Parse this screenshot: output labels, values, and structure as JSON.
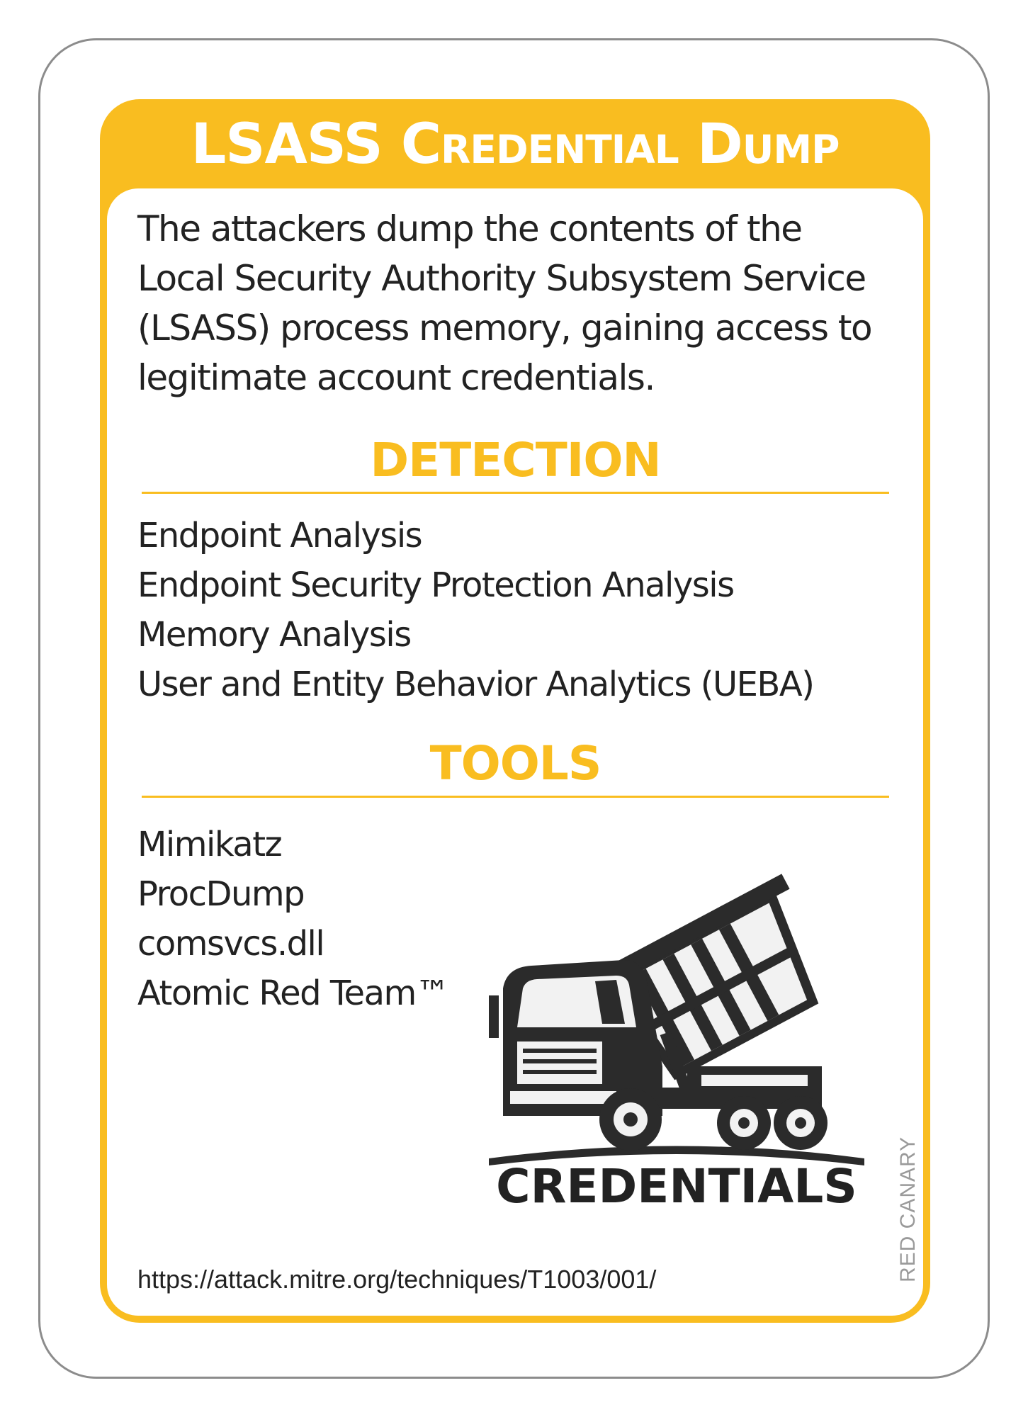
{
  "card": {
    "title": "LSASS Credential Dump",
    "description": "The attackers dump the contents of the Local Security Authority Subsystem Service (LSASS) process memory, gaining access to legitimate account credentials.",
    "detection": {
      "heading": "DETECTION",
      "items": [
        "Endpoint Analysis",
        "Endpoint Security Protection Analysis",
        "Memory Analysis",
        "User and Entity Behavior Analytics (UEBA)"
      ]
    },
    "tools": {
      "heading": "TOOLS",
      "items": [
        "Mimikatz",
        "ProcDump",
        "comsvcs.dll",
        "Atomic Red Team™"
      ]
    },
    "category_label": "CREDENTIALS",
    "illustration_icon": "dump-truck-icon",
    "url": "https://attack.mitre.org/techniques/T1003/001/",
    "brand": "RED CANARY"
  },
  "colors": {
    "accent": "#f9bd20",
    "text": "#222222",
    "card_border": "#8c8c8c",
    "brand_gray": "#9a9a9a"
  }
}
